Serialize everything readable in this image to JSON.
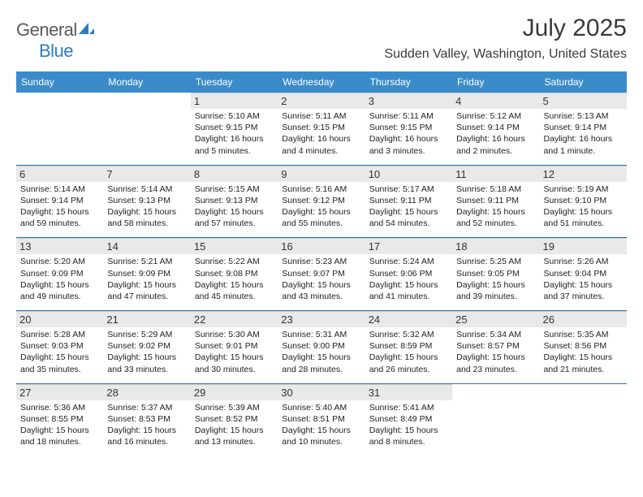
{
  "logo": {
    "text1": "General",
    "text2": "Blue"
  },
  "title": "July 2025",
  "location": "Sudden Valley, Washington, United States",
  "header_bg": "#3a8bc9",
  "rule_color": "#2f6fa3",
  "daynum_bg": "#e9e9e9",
  "weekdays": [
    "Sunday",
    "Monday",
    "Tuesday",
    "Wednesday",
    "Thursday",
    "Friday",
    "Saturday"
  ],
  "weeks": [
    [
      null,
      null,
      {
        "n": "1",
        "sunrise": "5:10 AM",
        "sunset": "9:15 PM",
        "daylight": "16 hours and 5 minutes."
      },
      {
        "n": "2",
        "sunrise": "5:11 AM",
        "sunset": "9:15 PM",
        "daylight": "16 hours and 4 minutes."
      },
      {
        "n": "3",
        "sunrise": "5:11 AM",
        "sunset": "9:15 PM",
        "daylight": "16 hours and 3 minutes."
      },
      {
        "n": "4",
        "sunrise": "5:12 AM",
        "sunset": "9:14 PM",
        "daylight": "16 hours and 2 minutes."
      },
      {
        "n": "5",
        "sunrise": "5:13 AM",
        "sunset": "9:14 PM",
        "daylight": "16 hours and 1 minute."
      }
    ],
    [
      {
        "n": "6",
        "sunrise": "5:14 AM",
        "sunset": "9:14 PM",
        "daylight": "15 hours and 59 minutes."
      },
      {
        "n": "7",
        "sunrise": "5:14 AM",
        "sunset": "9:13 PM",
        "daylight": "15 hours and 58 minutes."
      },
      {
        "n": "8",
        "sunrise": "5:15 AM",
        "sunset": "9:13 PM",
        "daylight": "15 hours and 57 minutes."
      },
      {
        "n": "9",
        "sunrise": "5:16 AM",
        "sunset": "9:12 PM",
        "daylight": "15 hours and 55 minutes."
      },
      {
        "n": "10",
        "sunrise": "5:17 AM",
        "sunset": "9:11 PM",
        "daylight": "15 hours and 54 minutes."
      },
      {
        "n": "11",
        "sunrise": "5:18 AM",
        "sunset": "9:11 PM",
        "daylight": "15 hours and 52 minutes."
      },
      {
        "n": "12",
        "sunrise": "5:19 AM",
        "sunset": "9:10 PM",
        "daylight": "15 hours and 51 minutes."
      }
    ],
    [
      {
        "n": "13",
        "sunrise": "5:20 AM",
        "sunset": "9:09 PM",
        "daylight": "15 hours and 49 minutes."
      },
      {
        "n": "14",
        "sunrise": "5:21 AM",
        "sunset": "9:09 PM",
        "daylight": "15 hours and 47 minutes."
      },
      {
        "n": "15",
        "sunrise": "5:22 AM",
        "sunset": "9:08 PM",
        "daylight": "15 hours and 45 minutes."
      },
      {
        "n": "16",
        "sunrise": "5:23 AM",
        "sunset": "9:07 PM",
        "daylight": "15 hours and 43 minutes."
      },
      {
        "n": "17",
        "sunrise": "5:24 AM",
        "sunset": "9:06 PM",
        "daylight": "15 hours and 41 minutes."
      },
      {
        "n": "18",
        "sunrise": "5:25 AM",
        "sunset": "9:05 PM",
        "daylight": "15 hours and 39 minutes."
      },
      {
        "n": "19",
        "sunrise": "5:26 AM",
        "sunset": "9:04 PM",
        "daylight": "15 hours and 37 minutes."
      }
    ],
    [
      {
        "n": "20",
        "sunrise": "5:28 AM",
        "sunset": "9:03 PM",
        "daylight": "15 hours and 35 minutes."
      },
      {
        "n": "21",
        "sunrise": "5:29 AM",
        "sunset": "9:02 PM",
        "daylight": "15 hours and 33 minutes."
      },
      {
        "n": "22",
        "sunrise": "5:30 AM",
        "sunset": "9:01 PM",
        "daylight": "15 hours and 30 minutes."
      },
      {
        "n": "23",
        "sunrise": "5:31 AM",
        "sunset": "9:00 PM",
        "daylight": "15 hours and 28 minutes."
      },
      {
        "n": "24",
        "sunrise": "5:32 AM",
        "sunset": "8:59 PM",
        "daylight": "15 hours and 26 minutes."
      },
      {
        "n": "25",
        "sunrise": "5:34 AM",
        "sunset": "8:57 PM",
        "daylight": "15 hours and 23 minutes."
      },
      {
        "n": "26",
        "sunrise": "5:35 AM",
        "sunset": "8:56 PM",
        "daylight": "15 hours and 21 minutes."
      }
    ],
    [
      {
        "n": "27",
        "sunrise": "5:36 AM",
        "sunset": "8:55 PM",
        "daylight": "15 hours and 18 minutes."
      },
      {
        "n": "28",
        "sunrise": "5:37 AM",
        "sunset": "8:53 PM",
        "daylight": "15 hours and 16 minutes."
      },
      {
        "n": "29",
        "sunrise": "5:39 AM",
        "sunset": "8:52 PM",
        "daylight": "15 hours and 13 minutes."
      },
      {
        "n": "30",
        "sunrise": "5:40 AM",
        "sunset": "8:51 PM",
        "daylight": "15 hours and 10 minutes."
      },
      {
        "n": "31",
        "sunrise": "5:41 AM",
        "sunset": "8:49 PM",
        "daylight": "15 hours and 8 minutes."
      },
      null,
      null
    ]
  ],
  "labels": {
    "sunrise": "Sunrise: ",
    "sunset": "Sunset: ",
    "daylight": "Daylight: "
  }
}
